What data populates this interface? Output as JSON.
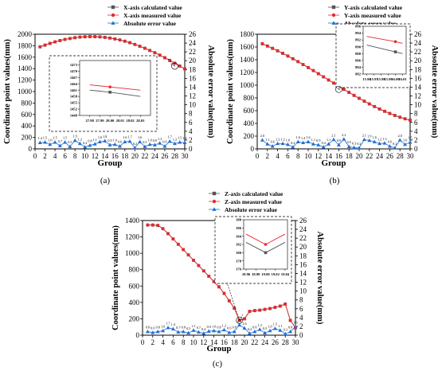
{
  "chart_data": [
    {
      "id": "a",
      "type": "line",
      "panel_label": "(a)",
      "xlabel": "Group",
      "ylabel": "Coordinate point values(mm)",
      "y2label": "Absolute error value(mm)",
      "xlim": [
        0,
        30
      ],
      "ylim": [
        0,
        2000
      ],
      "y2lim": [
        0,
        26
      ],
      "xticks": [
        "0",
        "2",
        "4",
        "6",
        "8",
        "10",
        "12",
        "14",
        "16",
        "18",
        "20",
        "22",
        "24",
        "26",
        "28",
        "30"
      ],
      "yticks": [
        "0",
        "200",
        "400",
        "600",
        "800",
        "1000",
        "1200",
        "1400",
        "1600",
        "1800",
        "2000"
      ],
      "y2ticks": [
        "0",
        "2",
        "4",
        "6",
        "8",
        "10",
        "12",
        "14",
        "16",
        "18",
        "20",
        "22",
        "24",
        "26"
      ],
      "legend_position": "top-right",
      "series": [
        {
          "name": "X-axis calculated value",
          "color": "#555555",
          "marker": "square",
          "x": [
            1,
            2,
            3,
            4,
            5,
            6,
            7,
            8,
            9,
            10,
            11,
            12,
            13,
            14,
            15,
            16,
            17,
            18,
            19,
            20,
            21,
            22,
            23,
            24,
            25,
            26,
            27,
            28,
            29,
            30
          ],
          "values": [
            1780,
            1810,
            1840,
            1866,
            1890,
            1910,
            1926,
            1940,
            1950,
            1955,
            1958,
            1957,
            1953,
            1945,
            1933,
            1918,
            1900,
            1878,
            1852,
            1822,
            1790,
            1755,
            1717,
            1677,
            1635,
            1590,
            1543,
            1495,
            1445,
            1395
          ]
        },
        {
          "name": "X-axis measured value",
          "color": "#e8282b",
          "marker": "circle",
          "x": [
            1,
            2,
            3,
            4,
            5,
            6,
            7,
            8,
            9,
            10,
            11,
            12,
            13,
            14,
            15,
            16,
            17,
            18,
            19,
            20,
            21,
            22,
            23,
            24,
            25,
            26,
            27,
            28,
            29,
            30
          ],
          "values": [
            1781,
            1811,
            1841,
            1867,
            1891,
            1911,
            1927,
            1941,
            1951,
            1956,
            1959,
            1958,
            1954,
            1946,
            1934,
            1919,
            1901,
            1879,
            1853,
            1823,
            1791,
            1756,
            1718,
            1678,
            1636,
            1591,
            1544,
            1496,
            1446,
            1396
          ]
        },
        {
          "name": "Absolute error value",
          "color": "#1f6fd6",
          "marker": "triangle",
          "axis": "right",
          "x": [
            1,
            2,
            3,
            4,
            5,
            6,
            7,
            8,
            9,
            10,
            11,
            12,
            13,
            14,
            15,
            16,
            17,
            18,
            19,
            20,
            21,
            22,
            23,
            24,
            25,
            26,
            27,
            28,
            29,
            30
          ],
          "values": [
            1.4,
            1.5,
            1.0,
            1.5,
            0.7,
            1.5,
            0.5,
            1.9,
            1.2,
            0.4,
            0.8,
            1.1,
            1.6,
            1.8,
            0.9,
            1.0,
            0.6,
            1.6,
            1.7,
            0.2,
            1.6,
            0.5,
            1.0,
            0.9,
            1.3,
            0.6,
            1.7,
            1.2,
            1.5,
            1.4
          ],
          "data_labels": [
            "1.4",
            "1.5",
            "1.0",
            "1.5",
            "0.7",
            "1.5",
            "0.5",
            "1.9",
            "1.2",
            "0.4",
            "0.8",
            "1.1",
            "1.6",
            "1.8",
            "0.9",
            "1.0",
            "0.6",
            "1.6",
            "1.7",
            "0.2",
            "1.6",
            "0.5",
            "1.0",
            "0.9",
            "1.3",
            "0.6",
            "1.7",
            "1.2",
            "1.5",
            "1.4"
          ]
        }
      ],
      "inset": {
        "xlim": [
          27.97,
          28.04
        ],
        "ylim": [
          1449,
          1475
        ],
        "xticks": [
          "27.98",
          "27.99",
          "28.00",
          "28.01",
          "28.02",
          "28.03"
        ],
        "yticks": [
          "1449",
          "1452",
          "1455",
          "1458",
          "1461",
          "1464",
          "1467",
          "1470",
          "1473"
        ],
        "calc_line": {
          "x": [
            27.98,
            28.0,
            28.03
          ],
          "y": [
            1461,
            1460,
            1458
          ]
        },
        "meas_line": {
          "x": [
            27.98,
            28.0,
            28.03
          ],
          "y": [
            1463.5,
            1462.5,
            1461
          ]
        }
      }
    },
    {
      "id": "b",
      "type": "line",
      "panel_label": "(b)",
      "xlabel": "Group",
      "ylabel": "Coordinate point values(mm)",
      "y2label": "Absolute error value(mm)",
      "xlim": [
        0,
        30
      ],
      "ylim": [
        0,
        1800
      ],
      "y2lim": [
        0,
        26
      ],
      "xticks": [
        "0",
        "2",
        "4",
        "6",
        "8",
        "10",
        "12",
        "14",
        "16",
        "18",
        "20",
        "22",
        "24",
        "26",
        "28",
        "30"
      ],
      "yticks": [
        "0",
        "200",
        "400",
        "600",
        "800",
        "1000",
        "1200",
        "1400",
        "1600",
        "1800"
      ],
      "y2ticks": [
        "0",
        "2",
        "4",
        "6",
        "8",
        "10",
        "12",
        "14",
        "16",
        "18",
        "20",
        "22",
        "24",
        "26"
      ],
      "legend_position": "top-right",
      "series": [
        {
          "name": "Y-axis calculated value",
          "color": "#555555",
          "marker": "square",
          "x": [
            1,
            2,
            3,
            4,
            5,
            6,
            7,
            8,
            9,
            10,
            11,
            12,
            13,
            14,
            15,
            16,
            17,
            18,
            19,
            20,
            21,
            22,
            23,
            24,
            25,
            26,
            27,
            28,
            29,
            30
          ],
          "values": [
            1650,
            1615,
            1578,
            1540,
            1500,
            1458,
            1415,
            1370,
            1324,
            1277,
            1229,
            1180,
            1131,
            1082,
            1033,
            984,
            935,
            887,
            840,
            794,
            749,
            706,
            665,
            626,
            590,
            556,
            525,
            497,
            472,
            450
          ]
        },
        {
          "name": "Y-axis measured value",
          "color": "#e8282b",
          "marker": "circle",
          "x": [
            1,
            2,
            3,
            4,
            5,
            6,
            7,
            8,
            9,
            10,
            11,
            12,
            13,
            14,
            15,
            16,
            17,
            18,
            19,
            20,
            21,
            22,
            23,
            24,
            25,
            26,
            27,
            28,
            29,
            30
          ],
          "values": [
            1651,
            1616,
            1579,
            1541,
            1501,
            1459,
            1416,
            1371,
            1325,
            1278,
            1230,
            1181,
            1132,
            1083,
            1034,
            985,
            936,
            888,
            841,
            795,
            750,
            707,
            666,
            627,
            591,
            557,
            526,
            498,
            473,
            451
          ]
        },
        {
          "name": "Absolute error value",
          "color": "#1f6fd6",
          "marker": "triangle",
          "axis": "right",
          "x": [
            1,
            2,
            3,
            4,
            5,
            6,
            7,
            8,
            9,
            10,
            11,
            12,
            13,
            14,
            15,
            16,
            17,
            18,
            19,
            20,
            21,
            22,
            23,
            24,
            25,
            26,
            27,
            28,
            29,
            30
          ],
          "values": [
            2.0,
            1.1,
            0.6,
            1.2,
            1.2,
            1.0,
            0.4,
            1.6,
            1.4,
            1.6,
            1.1,
            0.9,
            0.4,
            1.1,
            2.1,
            0.9,
            2.2,
            0.5,
            0.3,
            0.2,
            2.1,
            1.9,
            1.6,
            1.2,
            1.3,
            0.6,
            0.2,
            2.0,
            1.0,
            1.5
          ],
          "data_labels": [
            "2.0",
            "1.1",
            "0.6",
            "1.2",
            "1.2",
            "1.0",
            "0.4",
            "1.6",
            "1.4",
            "1.6",
            "1.1",
            "0.9",
            "0.4",
            "1.1",
            "2.1",
            "0.9",
            "2.2",
            "0.5",
            "0.3",
            "0.2",
            "2.1",
            "1.9",
            "1.6",
            "1.2",
            "1.3",
            "0.6",
            "0.2",
            "2.0",
            "1.0",
            "1.5"
          ]
        }
      ],
      "inset": {
        "xlim": [
          15.955,
          16.015
        ],
        "ylim": [
          882,
          896
        ],
        "xticks": [
          "15.96",
          "15.97",
          "15.98",
          "15.99",
          "16.00",
          "16.01"
        ],
        "yticks": [
          "882",
          "884",
          "886",
          "888",
          "890",
          "892",
          "894",
          "896"
        ],
        "calc_line": {
          "x": [
            15.96,
            16.0,
            16.01
          ],
          "y": [
            890.5,
            888.5,
            888
          ]
        },
        "meas_line": {
          "x": [
            15.96,
            16.0,
            16.01
          ],
          "y": [
            893,
            891.5,
            891
          ]
        }
      }
    },
    {
      "id": "c",
      "type": "line",
      "panel_label": "(c)",
      "xlabel": "Group",
      "ylabel": "Coordinate point values(mm)",
      "y2label": "Absolute error value(mm)",
      "xlim": [
        0,
        30
      ],
      "ylim": [
        0,
        1400
      ],
      "y2lim": [
        0,
        26
      ],
      "xticks": [
        "0",
        "2",
        "4",
        "6",
        "8",
        "10",
        "12",
        "14",
        "16",
        "18",
        "20",
        "22",
        "24",
        "26",
        "28",
        "30"
      ],
      "yticks": [
        "0",
        "200",
        "400",
        "600",
        "800",
        "1000",
        "1200",
        "1400"
      ],
      "y2ticks": [
        "0",
        "2",
        "4",
        "6",
        "8",
        "10",
        "12",
        "14",
        "16",
        "18",
        "20",
        "22",
        "24",
        "26"
      ],
      "legend_position": "top-center",
      "series": [
        {
          "name": "Z-axis calculated value",
          "color": "#555555",
          "marker": "square",
          "x": [
            1,
            2,
            3,
            4,
            5,
            6,
            7,
            8,
            9,
            10,
            11,
            12,
            13,
            14,
            15,
            16,
            17,
            18,
            19,
            20,
            21,
            22,
            23,
            24,
            25,
            26,
            27,
            28,
            29,
            30
          ],
          "values": [
            1345,
            1345,
            1340,
            1300,
            1240,
            1175,
            1110,
            1045,
            980,
            915,
            850,
            785,
            720,
            655,
            590,
            510,
            420,
            330,
            182,
            200,
            290,
            300,
            305,
            315,
            325,
            340,
            355,
            380,
            180,
            90
          ]
        },
        {
          "name": "Z-axis measured value",
          "color": "#e8282b",
          "marker": "circle",
          "x": [
            1,
            2,
            3,
            4,
            5,
            6,
            7,
            8,
            9,
            10,
            11,
            12,
            13,
            14,
            15,
            16,
            17,
            18,
            19,
            20,
            21,
            22,
            23,
            24,
            25,
            26,
            27,
            28,
            29,
            30
          ],
          "values": [
            1346,
            1346,
            1341,
            1301,
            1241,
            1176,
            1111,
            1046,
            981,
            916,
            851,
            786,
            721,
            656,
            591,
            511,
            421,
            331,
            183,
            201,
            291,
            301,
            306,
            316,
            326,
            341,
            356,
            381,
            181,
            91
          ]
        },
        {
          "name": "Absolute error value",
          "color": "#1f6fd6",
          "marker": "triangle",
          "axis": "right",
          "x": [
            1,
            2,
            3,
            4,
            5,
            6,
            7,
            8,
            9,
            10,
            11,
            12,
            13,
            14,
            15,
            16,
            17,
            18,
            19,
            20,
            21,
            22,
            23,
            24,
            25,
            26,
            27,
            28,
            29,
            30
          ],
          "values": [
            0.8,
            0.6,
            0.8,
            1.0,
            1.7,
            1.4,
            0.7,
            0.8,
            0.5,
            1.1,
            0.7,
            0.4,
            0.9,
            1.0,
            0.8,
            1.2,
            0.6,
            0.8,
            2.3,
            1.6,
            0.4,
            0.8,
            1.3,
            0.5,
            1.0,
            1.5,
            1.1,
            0.3,
            0.8,
            1.9
          ],
          "data_labels": [
            "0.8",
            "0.6",
            "0.8",
            "1.0",
            "1.7",
            "1.4",
            "0.7",
            "0.8",
            "0.5",
            "1.1",
            "0.7",
            "0.4",
            "0.9",
            "1.0",
            "0.8",
            "1.2",
            "0.6",
            "0.8",
            "2.3",
            "1.6",
            "0.4",
            "0.8",
            "1.3",
            "0.5",
            "1.0",
            "1.5",
            "1.1",
            "0.3",
            "0.8",
            "1.9"
          ]
        }
      ],
      "inset": {
        "xlim": [
          18.955,
          19.045
        ],
        "ylim": [
          176,
          188
        ],
        "xticks": [
          "18.96",
          "18.98",
          "19.00",
          "19.02",
          "19.04"
        ],
        "yticks": [
          "176",
          "178",
          "180",
          "182",
          "184",
          "186",
          "188"
        ],
        "calc_line": {
          "x": [
            18.96,
            19.0,
            19.04
          ],
          "y": [
            182.5,
            180,
            182.5
          ]
        },
        "meas_line": {
          "x": [
            18.96,
            19.0,
            19.04
          ],
          "y": [
            184.5,
            182,
            184.5
          ]
        }
      }
    }
  ]
}
